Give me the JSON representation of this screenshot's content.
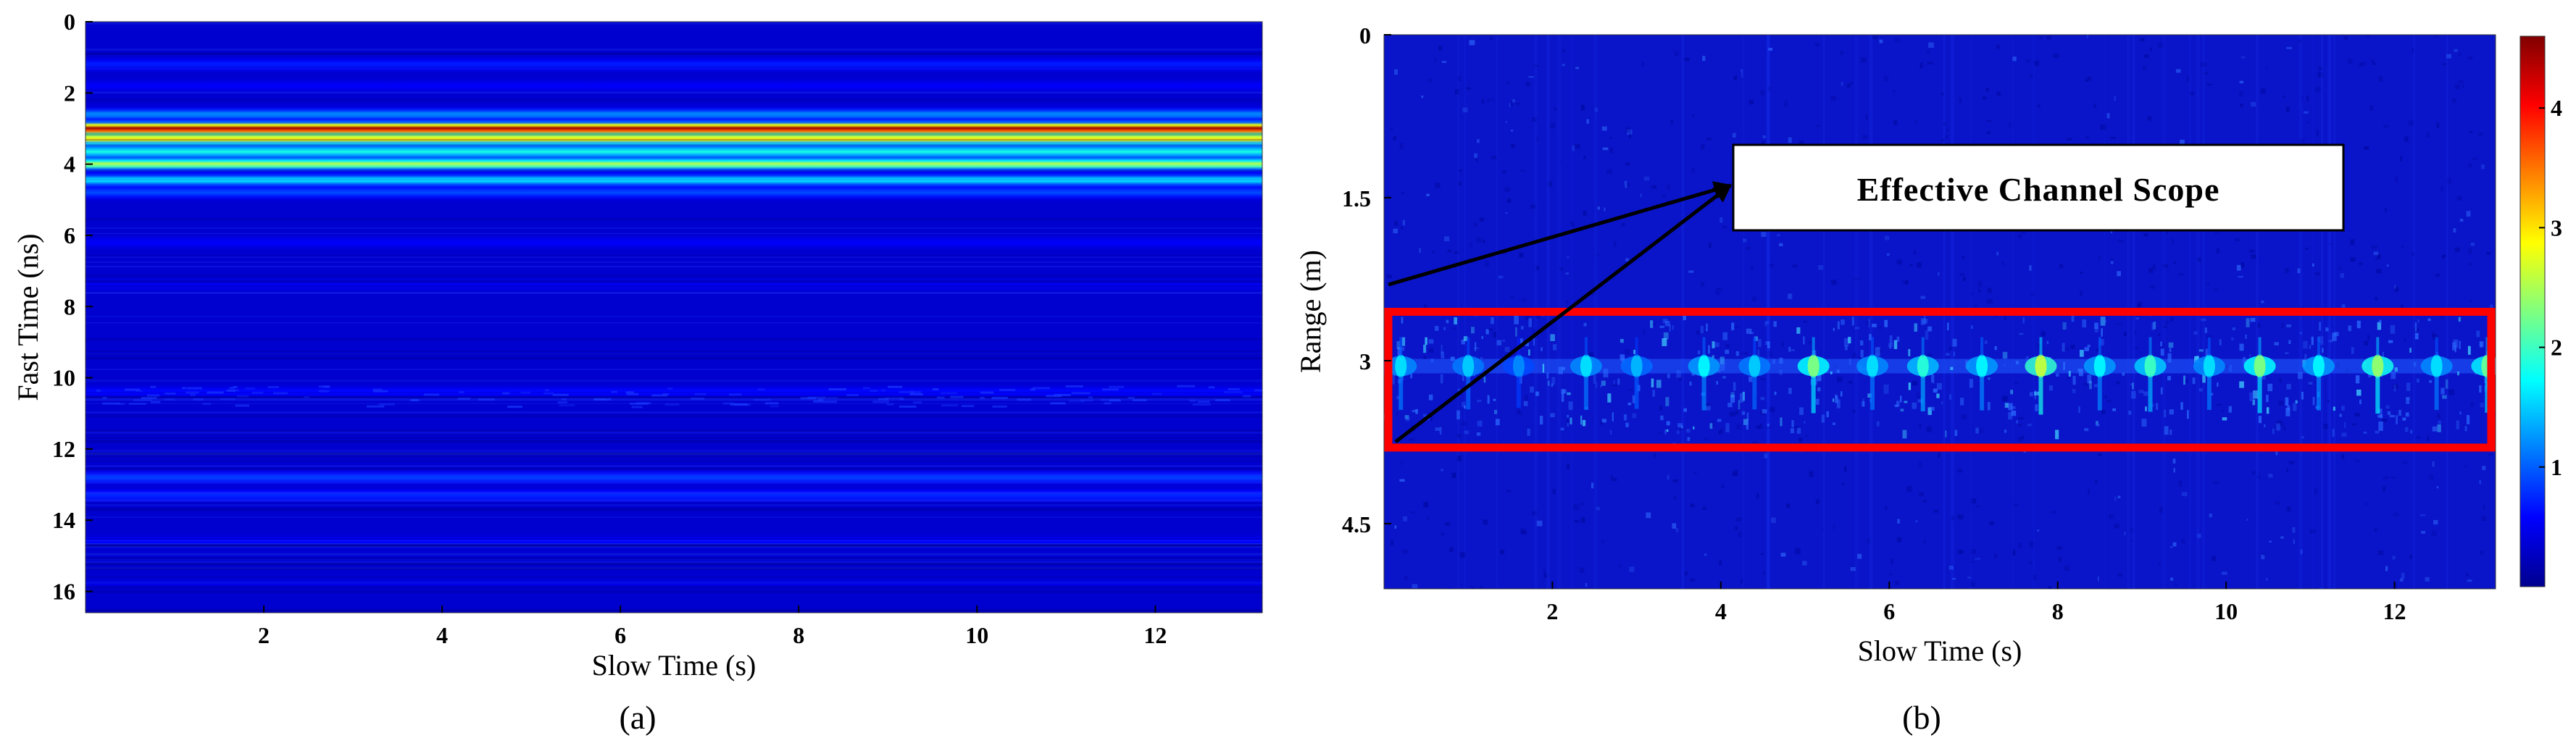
{
  "chart_data": [
    {
      "type": "heatmap",
      "panel": "a",
      "caption": "(a)",
      "xlabel": "Slow Time (s)",
      "ylabel": "Fast Time (ns)",
      "xlim": [
        0,
        13.2
      ],
      "ylim": [
        0,
        16.6
      ],
      "y_reversed": true,
      "xticks": [
        2,
        4,
        6,
        8,
        10,
        12
      ],
      "yticks": [
        0,
        2,
        4,
        6,
        8,
        10,
        12,
        14,
        16
      ],
      "colormap": "jet",
      "clim": [
        0,
        4.5
      ],
      "background_level": 0.35,
      "bands": [
        {
          "y": 1.2,
          "level": 0.7
        },
        {
          "y": 1.8,
          "level": 0.55
        },
        {
          "y": 2.6,
          "level": 1.2
        },
        {
          "y": 3.0,
          "level": 4.4
        },
        {
          "y": 3.3,
          "level": 3.0
        },
        {
          "y": 3.65,
          "level": 1.8
        },
        {
          "y": 4.0,
          "level": 2.5
        },
        {
          "y": 4.45,
          "level": 1.6
        },
        {
          "y": 4.8,
          "level": 0.9
        },
        {
          "y": 6.2,
          "level": 0.55
        },
        {
          "y": 7.4,
          "level": 0.5
        },
        {
          "y": 10.4,
          "level": 0.6
        },
        {
          "y": 12.8,
          "level": 0.85
        },
        {
          "y": 13.3,
          "level": 0.75
        },
        {
          "y": 14.6,
          "level": 0.55
        },
        {
          "y": 15.8,
          "level": 0.45
        }
      ]
    },
    {
      "type": "heatmap",
      "panel": "b",
      "caption": "(b)",
      "xlabel": "Slow Time (s)",
      "ylabel": "Range (m)",
      "xlim": [
        0,
        13.2
      ],
      "ylim": [
        0,
        5.1
      ],
      "y_reversed": true,
      "xticks": [
        2,
        4,
        6,
        8,
        10,
        12
      ],
      "yticks": [
        0,
        1.5,
        3,
        4.5
      ],
      "colormap": "jet",
      "clim": [
        0,
        4.6
      ],
      "colorbar_ticks": [
        1,
        2,
        3,
        4
      ],
      "background_level": 0.3,
      "target_range_m": 3.05,
      "peaks": [
        {
          "x": 0.2,
          "level": 1.6
        },
        {
          "x": 1.0,
          "level": 1.5
        },
        {
          "x": 1.6,
          "level": 1.2
        },
        {
          "x": 2.4,
          "level": 1.6
        },
        {
          "x": 3.0,
          "level": 1.4
        },
        {
          "x": 3.8,
          "level": 1.7
        },
        {
          "x": 4.4,
          "level": 1.5
        },
        {
          "x": 5.1,
          "level": 2.3
        },
        {
          "x": 5.8,
          "level": 1.6
        },
        {
          "x": 6.4,
          "level": 1.9
        },
        {
          "x": 7.1,
          "level": 1.7
        },
        {
          "x": 7.8,
          "level": 2.6
        },
        {
          "x": 8.5,
          "level": 1.7
        },
        {
          "x": 9.1,
          "level": 2.0
        },
        {
          "x": 9.8,
          "level": 1.6
        },
        {
          "x": 10.4,
          "level": 2.3
        },
        {
          "x": 11.1,
          "level": 1.7
        },
        {
          "x": 11.8,
          "level": 2.4
        },
        {
          "x": 12.5,
          "level": 1.6
        },
        {
          "x": 13.1,
          "level": 2.2
        }
      ],
      "highlight_box": {
        "x_range": [
          0,
          13.2
        ],
        "y_range": [
          2.55,
          3.8
        ],
        "color": "#ff0000"
      },
      "annotation": {
        "text": "Effective Channel Scope"
      }
    }
  ]
}
